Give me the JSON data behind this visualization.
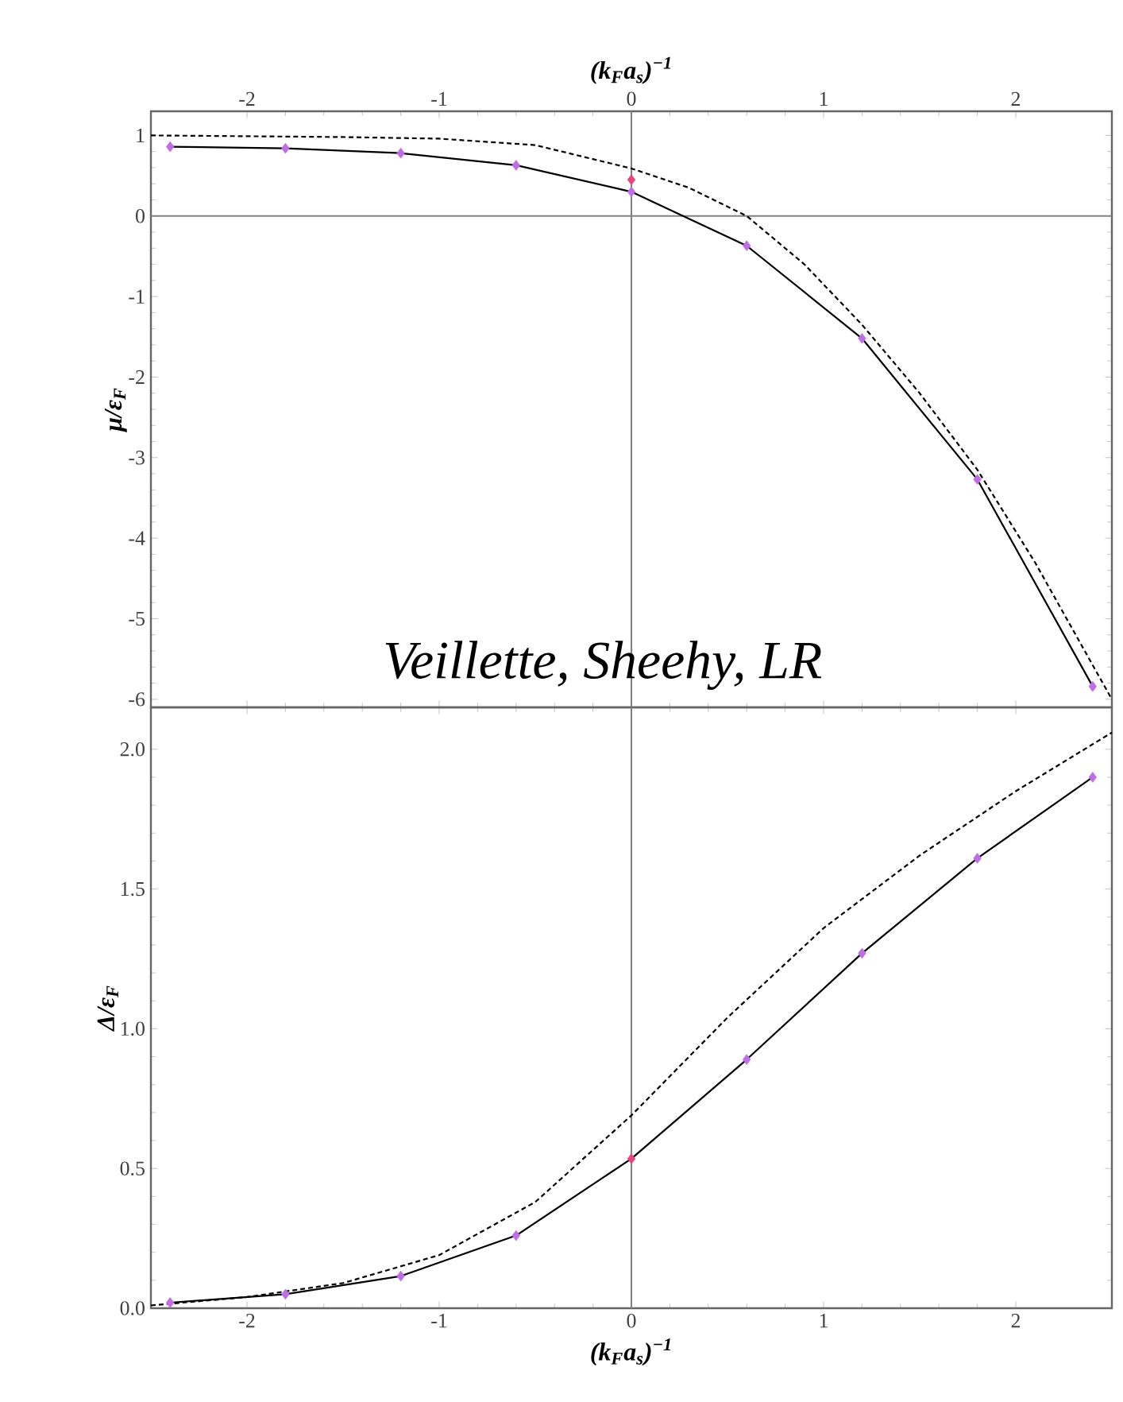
{
  "chart_data": [
    {
      "type": "line",
      "xlabel": "(k$_{F}$a$_{s}$)$^{−1}$",
      "ylabel": "μ/ε$_{F}$",
      "xlim": [
        -2.5,
        2.5
      ],
      "xticks": [
        -2,
        -1,
        0,
        1,
        2
      ],
      "ylim": [
        -6.1,
        1.3
      ],
      "yticks": [
        1,
        0,
        -1,
        -2,
        -3,
        -4,
        -5,
        -6
      ],
      "annotations": [
        "Veillette, Sheehy, LR"
      ],
      "ref_lines": [
        {
          "axis": "y",
          "value": 0,
          "color": "#808080"
        },
        {
          "axis": "x",
          "value": 0,
          "color": "#808080"
        }
      ],
      "series": [
        {
          "type": "line",
          "color": "#000000",
          "line_style": "dashed",
          "x": [
            -2.5,
            -2,
            -1.5,
            -1,
            -0.5,
            0,
            0.3,
            0.6,
            0.9,
            1.2,
            1.5,
            1.8,
            2.1,
            2.5
          ],
          "values": [
            1.0,
            0.99,
            0.98,
            0.96,
            0.88,
            0.59,
            0.35,
            0.0,
            -0.6,
            -1.35,
            -2.2,
            -3.15,
            -4.3,
            -6.0
          ]
        },
        {
          "type": "line",
          "color": "#000000",
          "line_style": "solid",
          "x": [
            -2.4,
            -1.8,
            -1.2,
            -0.6,
            0,
            0.6,
            1.2,
            1.8,
            2.4
          ],
          "values": [
            0.86,
            0.84,
            0.78,
            0.63,
            0.3,
            -0.37,
            -1.52,
            -3.27,
            -5.84
          ]
        },
        {
          "type": "scatter",
          "color": "#c06ee6",
          "marker": "diamond",
          "x": [
            -2.4,
            -1.8,
            -1.2,
            -0.6,
            0,
            0.6,
            1.2,
            1.8,
            2.4
          ],
          "values": [
            0.86,
            0.84,
            0.78,
            0.63,
            0.3,
            -0.37,
            -1.52,
            -3.27,
            -5.84
          ]
        },
        {
          "type": "scatter",
          "color": "#e8457a",
          "marker": "diamond",
          "x": [
            0
          ],
          "values": [
            0.45
          ]
        }
      ]
    },
    {
      "type": "line",
      "xlabel": "(k$_{F}$a$_{s}$)$^{−1}$",
      "ylabel": "Δ/ε$_{F}$",
      "xlim": [
        -2.5,
        2.5
      ],
      "xticks": [
        -2,
        -1,
        0,
        1,
        2
      ],
      "ylim": [
        0,
        2.15
      ],
      "yticks": [
        {
          "value": 0,
          "label": "0.0"
        },
        {
          "value": 0.5,
          "label": "0.5"
        },
        {
          "value": 1,
          "label": "1.0"
        },
        {
          "value": 1.5,
          "label": "1.5"
        },
        {
          "value": 2,
          "label": "2.0"
        }
      ],
      "ref_lines": [
        {
          "axis": "x",
          "value": 0,
          "color": "#808080"
        }
      ],
      "series": [
        {
          "type": "line",
          "color": "#000000",
          "line_style": "dashed",
          "x": [
            -2.5,
            -2,
            -1.5,
            -1,
            -0.5,
            0,
            0.5,
            1.0,
            1.5,
            2.0,
            2.5
          ],
          "values": [
            0.01,
            0.04,
            0.09,
            0.19,
            0.38,
            0.69,
            1.04,
            1.36,
            1.62,
            1.85,
            2.06
          ]
        },
        {
          "type": "line",
          "color": "#000000",
          "line_style": "solid",
          "x": [
            -2.4,
            -1.8,
            -1.2,
            -0.6,
            0,
            0.6,
            1.2,
            1.8,
            2.4
          ],
          "values": [
            0.02,
            0.05,
            0.115,
            0.26,
            0.535,
            0.89,
            1.27,
            1.61,
            1.9
          ]
        },
        {
          "type": "scatter",
          "color": "#c06ee6",
          "marker": "diamond",
          "x": [
            -2.4,
            -1.8,
            -1.2,
            -0.6,
            0.6,
            1.2,
            1.8,
            2.4
          ],
          "values": [
            0.02,
            0.05,
            0.115,
            0.26,
            0.89,
            1.27,
            1.61,
            1.9
          ]
        },
        {
          "type": "scatter",
          "color": "#e8457a",
          "marker": "diamond",
          "x": [
            0
          ],
          "values": [
            0.535
          ]
        }
      ]
    }
  ]
}
